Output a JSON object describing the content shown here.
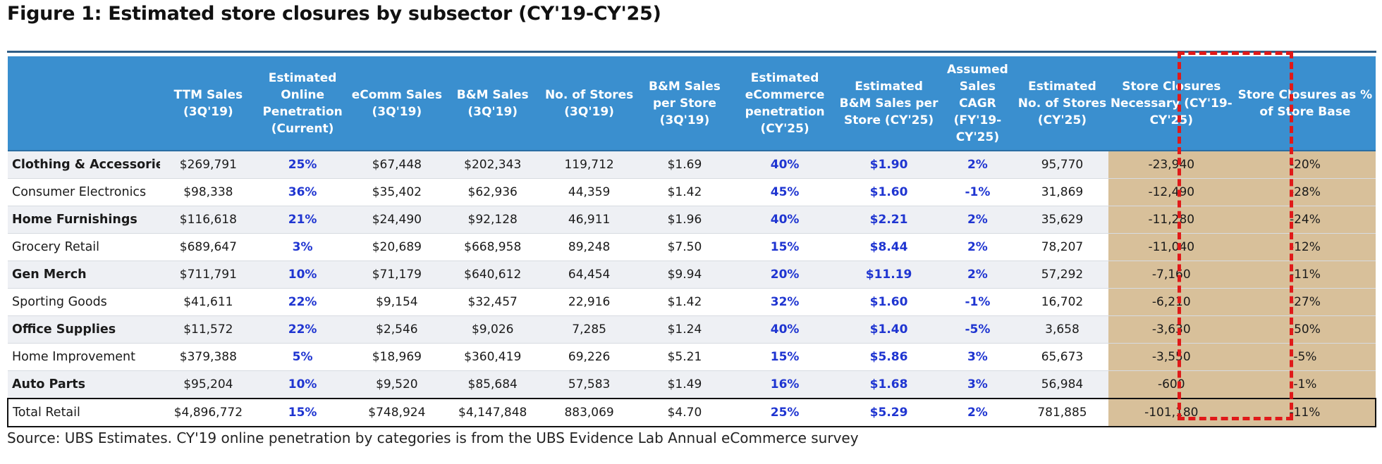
{
  "figure": {
    "title": "Figure 1: Estimated store closures by subsector (CY'19-CY'25)",
    "source": "Source:  UBS Estimates. CY'19 online penetration by categories is from the UBS Evidence Lab Annual eCommerce survey"
  },
  "colors": {
    "header_bg": "#3a8fcf",
    "highlight_col_bg": "#d8c09a",
    "blue_values": "#1f35d1",
    "dashed_box": "#e01919"
  },
  "table": {
    "headers": [
      "",
      "TTM Sales (3Q'19)",
      "Estimated Online Penetration (Current)",
      "eComm Sales (3Q'19)",
      "B&M Sales (3Q'19)",
      "No. of Stores (3Q'19)",
      "B&M Sales per Store (3Q'19)",
      "Estimated eCommerce penetration (CY'25)",
      "Estimated B&M Sales per Store (CY'25)",
      "Assumed Sales CAGR (FY'19-CY'25)",
      "Estimated No. of Stores (CY'25)",
      "Store Closures Necessary (CY'19- CY'25)",
      "Store Closures as % of Store Base"
    ],
    "rows": [
      [
        "Clothing & Accessories",
        "$269,791",
        "25%",
        "$67,448",
        "$202,343",
        "119,712",
        "$1.69",
        "40%",
        "$1.90",
        "2%",
        "95,770",
        "-23,940",
        "-20%"
      ],
      [
        "Consumer Electronics",
        "$98,338",
        "36%",
        "$35,402",
        "$62,936",
        "44,359",
        "$1.42",
        "45%",
        "$1.60",
        "-1%",
        "31,869",
        "-12,490",
        "-28%"
      ],
      [
        "Home Furnishings",
        "$116,618",
        "21%",
        "$24,490",
        "$92,128",
        "46,911",
        "$1.96",
        "40%",
        "$2.21",
        "2%",
        "35,629",
        "-11,280",
        "-24%"
      ],
      [
        "Grocery Retail",
        "$689,647",
        "3%",
        "$20,689",
        "$668,958",
        "89,248",
        "$7.50",
        "15%",
        "$8.44",
        "2%",
        "78,207",
        "-11,040",
        "-12%"
      ],
      [
        "Gen Merch",
        "$711,791",
        "10%",
        "$71,179",
        "$640,612",
        "64,454",
        "$9.94",
        "20%",
        "$11.19",
        "2%",
        "57,292",
        "-7,160",
        "-11%"
      ],
      [
        "Sporting Goods",
        "$41,611",
        "22%",
        "$9,154",
        "$32,457",
        "22,916",
        "$1.42",
        "32%",
        "$1.60",
        "-1%",
        "16,702",
        "-6,210",
        "-27%"
      ],
      [
        "Office Supplies",
        "$11,572",
        "22%",
        "$2,546",
        "$9,026",
        "7,285",
        "$1.24",
        "40%",
        "$1.40",
        "-5%",
        "3,658",
        "-3,630",
        "-50%"
      ],
      [
        "Home Improvement",
        "$379,388",
        "5%",
        "$18,969",
        "$360,419",
        "69,226",
        "$5.21",
        "15%",
        "$5.86",
        "3%",
        "65,673",
        "-3,550",
        "-5%"
      ],
      [
        "Auto Parts",
        "$95,204",
        "10%",
        "$9,520",
        "$85,684",
        "57,583",
        "$1.49",
        "16%",
        "$1.68",
        "3%",
        "56,984",
        "-600",
        "-1%"
      ]
    ],
    "total": [
      "Total Retail",
      "$4,896,772",
      "15%",
      "$748,924",
      "$4,147,848",
      "883,069",
      "$4.70",
      "25%",
      "$5.29",
      "2%",
      "781,885",
      "-101,180",
      "-11%"
    ]
  }
}
